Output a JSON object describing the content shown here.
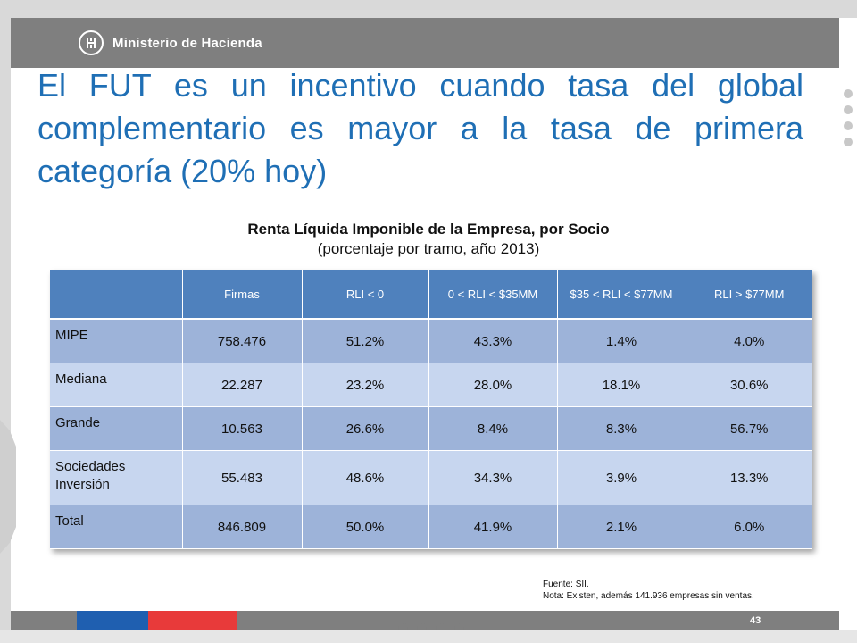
{
  "header": {
    "logo_text": "Ministerio de Hacienda",
    "logo_icon": "ministry-emblem-icon"
  },
  "slide": {
    "title": "El FUT es un incentivo cuando tasa del global complementario es mayor a la tasa de primera categoría (20% hoy)"
  },
  "table": {
    "title": "Renta Líquida Imponible de la Empresa, por Socio",
    "subtitle": "(porcentaje por tramo, año 2013)",
    "columns": [
      "",
      "Firmas",
      "RLI < 0",
      "0 < RLI < $35MM",
      "$35 < RLI < $77MM",
      "RLI > $77MM"
    ],
    "rows": [
      {
        "label": "MIPE",
        "firmas": "758.476",
        "rli_neg": "51.2%",
        "rli_0_35": "43.3%",
        "rli_35_77": "1.4%",
        "rli_77": "4.0%"
      },
      {
        "label": "Mediana",
        "firmas": "22.287",
        "rli_neg": "23.2%",
        "rli_0_35": "28.0%",
        "rli_35_77": "18.1%",
        "rli_77": "30.6%"
      },
      {
        "label": "Grande",
        "firmas": "10.563",
        "rli_neg": "26.6%",
        "rli_0_35": "8.4%",
        "rli_35_77": "8.3%",
        "rli_77": "56.7%"
      },
      {
        "label": "Sociedades Inversión",
        "firmas": "55.483",
        "rli_neg": "48.6%",
        "rli_0_35": "34.3%",
        "rli_35_77": "3.9%",
        "rli_77": "13.3%"
      },
      {
        "label": "Total",
        "firmas": "846.809",
        "rli_neg": "50.0%",
        "rli_0_35": "41.9%",
        "rli_35_77": "2.1%",
        "rli_77": "6.0%"
      }
    ]
  },
  "footnote": {
    "source": "Fuente: SII.",
    "note": "Nota: Existen, además 141.936 empresas sin ventas."
  },
  "footer": {
    "page_number": "43"
  },
  "colors": {
    "title": "#1f6fb5",
    "header_row": "#4f81bd",
    "row_dark": "#9db3d9",
    "row_light": "#c7d6ef",
    "bar_gray": "#7f7f7f",
    "footer_blue": "#1f5fb0",
    "footer_red": "#e83a3a"
  }
}
